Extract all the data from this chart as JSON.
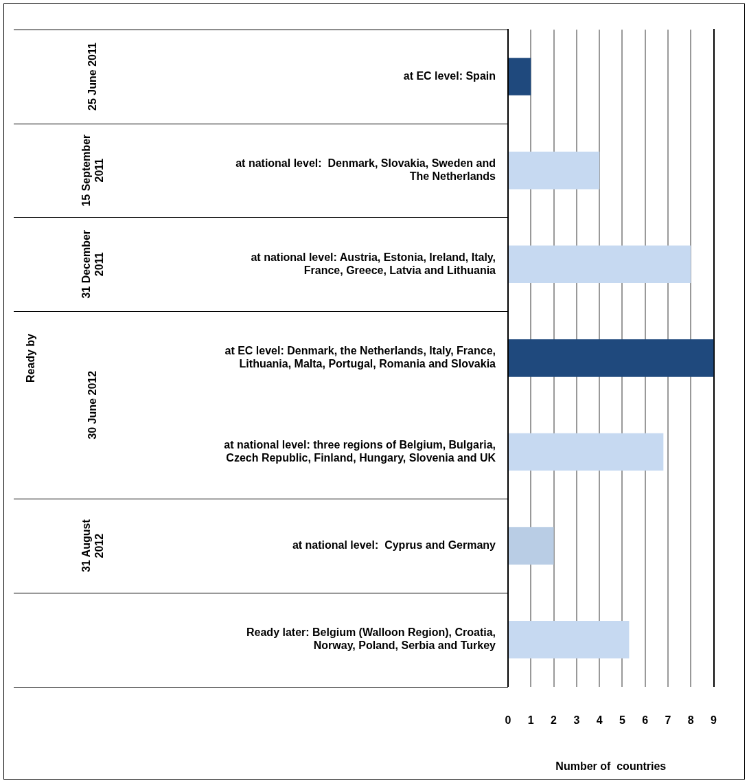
{
  "chart_data": {
    "type": "bar",
    "orientation": "horizontal",
    "xlabel": "Number of  countries",
    "categories": [
      "at EC level: Spain",
      "at national level:  Denmark, Slovakia, Sweden and The Netherlands",
      "at national level: Austria, Estonia, Ireland, Italy, France, Greece, Latvia and Lithuania",
      "at EC level: Denmark, the Netherlands, Italy, France, Lithuania, Malta, Portugal, Romania and Slovakia",
      "at national level: three regions of Belgium, Bulgaria, Czech Republic, Finland, Hungary, Slovenia and UK",
      "at national level:  Cyprus and Germany",
      "Ready later: Belgium (Walloon Region), Croatia, Norway, Poland, Serbia and Turkey"
    ],
    "values": [
      1,
      4,
      8,
      9,
      6.8,
      2,
      5.3
    ],
    "colors": [
      "#1f497d",
      "#c6d9f1",
      "#c6d9f1",
      "#1f497d",
      "#c6d9f1",
      "#b9cde5",
      "#c6d9f1"
    ],
    "xlim": [
      0,
      9
    ],
    "xticks": [
      0,
      1,
      2,
      3,
      4,
      5,
      6,
      7,
      8,
      9
    ],
    "grid": "x",
    "legend": false,
    "annotations": [
      "Ready by",
      "25 June 2011",
      "15 September 2011",
      "31 December 2011",
      "30 June 2012",
      "31 August 2012"
    ]
  }
}
